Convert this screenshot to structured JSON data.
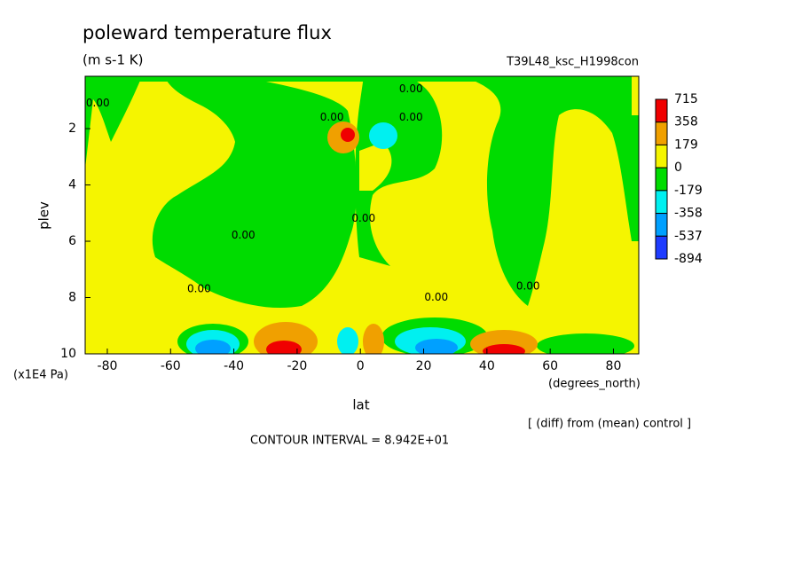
{
  "chart_data": {
    "type": "contour",
    "title": "poleward temperature flux",
    "subtitle": "(m s-1 K)",
    "run_label": "T39L48_ksc_H1998con",
    "xlabel": "lat",
    "xunit": "(degrees_north)",
    "ylabel": "plev",
    "yunit": "(x1E4 Pa)",
    "note": "[ (diff) from (mean) control ]",
    "contour_interval": "CONTOUR INTERVAL = 8.942E+01",
    "xlim": [
      -87,
      88
    ],
    "ylim": [
      10,
      0.14
    ],
    "xticks": [
      -80,
      -60,
      -40,
      -20,
      0,
      20,
      40,
      60,
      80
    ],
    "yticks": [
      2,
      4,
      6,
      8,
      10
    ],
    "levels": [
      715,
      358,
      179,
      0,
      -179,
      -358,
      -537,
      -894
    ],
    "colors": [
      "#f00000",
      "#f0a000",
      "#f5f500",
      "#00dc00",
      "#00f0f0",
      "#00a0ff",
      "#1e3cff"
    ],
    "contour_labels": [
      {
        "x": -83,
        "y": 1.1,
        "label": "0.00"
      },
      {
        "x": -9,
        "y": 1.6,
        "label": "0.00"
      },
      {
        "x": 16,
        "y": 1.6,
        "label": "0.00"
      },
      {
        "x": 16,
        "y": 0.6,
        "label": "0.00"
      },
      {
        "x": 1,
        "y": 5.2,
        "label": "0.00"
      },
      {
        "x": -37,
        "y": 5.8,
        "label": "0.00"
      },
      {
        "x": -51,
        "y": 7.7,
        "label": "0.00"
      },
      {
        "x": 24,
        "y": 8.0,
        "label": "0.00"
      },
      {
        "x": 53,
        "y": 7.6,
        "label": "0.00"
      }
    ]
  }
}
